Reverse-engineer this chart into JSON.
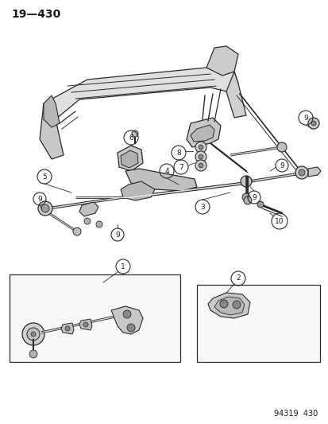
{
  "title": "19—430",
  "footer": "94319  430",
  "bg_color": "#ffffff",
  "text_color": "#1a1a1a",
  "title_fontsize": 10,
  "footer_fontsize": 7,
  "lc": "#2a2a2a",
  "lc_light": "#888888",
  "part_fill": "#d8d8d8",
  "part_fill2": "#c0c0c0",
  "part_fill3": "#e8e8e8",
  "circle_label_r": 0.018
}
